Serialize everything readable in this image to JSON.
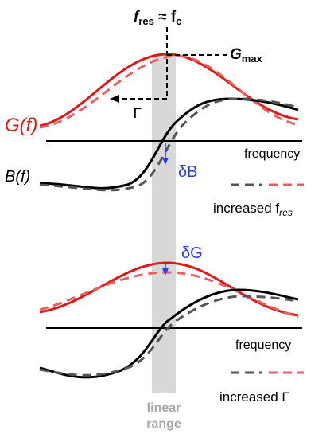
{
  "colors": {
    "G_curve": "#e01818",
    "B_curve": "#000000",
    "shifted_G": "#e56060",
    "shifted_B": "#555555",
    "delta_arrow": "#2a3be0",
    "linear_band": "#d8d8d8"
  },
  "top_panel": {
    "label_fres_f": "f",
    "label_fres_sub": "res",
    "label_approx": " ≈ f",
    "label_fc_sub": "c",
    "label_Gmax": "G",
    "label_Gmax_sub": "max",
    "label_Gamma": "Γ",
    "label_Gf": "G(f)",
    "label_Bf": "B(f)",
    "axis_label": "frequency",
    "delta_label": "δB",
    "legend_text": "increased f",
    "legend_sub": "res"
  },
  "bottom_panel": {
    "delta_label": "δG",
    "axis_label": "frequency",
    "legend_text": "increased Γ"
  },
  "band": {
    "line1": "linear",
    "line2": "range"
  }
}
